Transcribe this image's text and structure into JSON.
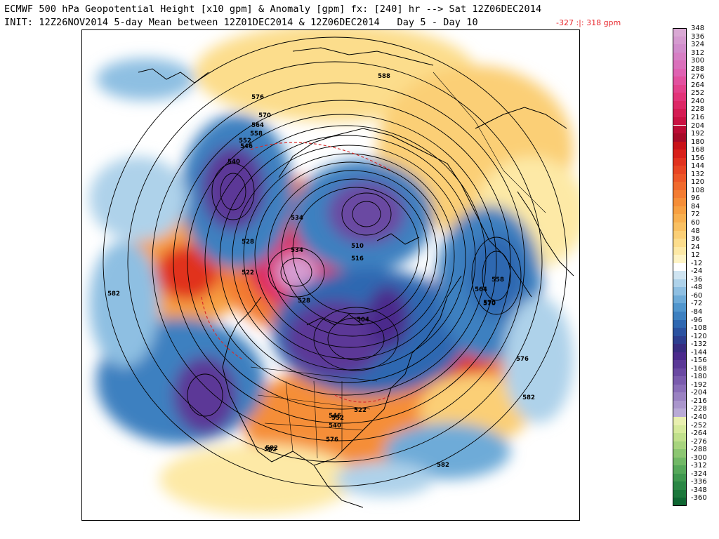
{
  "header": {
    "line1": "ECMWF 500 hPa Geopotential Height [x10 gpm] & Anomaly [gpm] fx: [240] hr --> Sat 12Z06DEC2014",
    "line2": "INIT: 12Z26NOV2014 5-day Mean between 12Z01DEC2014 & 12Z06DEC2014   Day 5 - Day 10",
    "anomaly_range": "-327 :|: 318 gpm"
  },
  "colors": {
    "range_text": "#e8262c",
    "contour": "#000000",
    "dashed_contour": "#d62c2c"
  },
  "legend": {
    "entries": [
      {
        "label": "348",
        "color": "#d9a9d4"
      },
      {
        "label": "336",
        "color": "#d59bd0"
      },
      {
        "label": "324",
        "color": "#d18dcc"
      },
      {
        "label": "312",
        "color": "#d67fc4"
      },
      {
        "label": "300",
        "color": "#da70bb"
      },
      {
        "label": "288",
        "color": "#df62b2"
      },
      {
        "label": "276",
        "color": "#e2519f"
      },
      {
        "label": "264",
        "color": "#e3428c"
      },
      {
        "label": "252",
        "color": "#e23479"
      },
      {
        "label": "240",
        "color": "#dd2866"
      },
      {
        "label": "228",
        "color": "#d41c53"
      },
      {
        "label": "216",
        "color": "#c91242"
      },
      {
        "label": "204",
        "color": "#bb0b34"
      },
      {
        "label": "192",
        "color": "#a60a28"
      },
      {
        "label": "180",
        "color": "#c81218"
      },
      {
        "label": "168",
        "color": "#d8201a"
      },
      {
        "label": "156",
        "color": "#e1321e"
      },
      {
        "label": "144",
        "color": "#e84523"
      },
      {
        "label": "132",
        "color": "#ed5728"
      },
      {
        "label": "120",
        "color": "#f06a2d"
      },
      {
        "label": "108",
        "color": "#f37c32"
      },
      {
        "label": "96",
        "color": "#f58e38"
      },
      {
        "label": "84",
        "color": "#f7a042"
      },
      {
        "label": "72",
        "color": "#f8b050"
      },
      {
        "label": "60",
        "color": "#f9c062"
      },
      {
        "label": "48",
        "color": "#fbcf76"
      },
      {
        "label": "36",
        "color": "#fcdd8c"
      },
      {
        "label": "24",
        "color": "#fde9a6"
      },
      {
        "label": "12",
        "color": "#fef4c6"
      },
      {
        "label": "-12",
        "color": "#ffffff"
      },
      {
        "label": "-24",
        "color": "#cfe4f1"
      },
      {
        "label": "-36",
        "color": "#aed2ea"
      },
      {
        "label": "-48",
        "color": "#8ebfe2"
      },
      {
        "label": "-60",
        "color": "#6eabd8"
      },
      {
        "label": "-72",
        "color": "#5196cd"
      },
      {
        "label": "-84",
        "color": "#3d80c0"
      },
      {
        "label": "-96",
        "color": "#2f68b1"
      },
      {
        "label": "-108",
        "color": "#2b52a0"
      },
      {
        "label": "-120",
        "color": "#2d3e8f"
      },
      {
        "label": "-132",
        "color": "#372c80"
      },
      {
        "label": "-144",
        "color": "#4b2a8c"
      },
      {
        "label": "-156",
        "color": "#5b3997"
      },
      {
        "label": "-168",
        "color": "#6a49a2"
      },
      {
        "label": "-180",
        "color": "#7a5bad"
      },
      {
        "label": "-192",
        "color": "#8a6eb8"
      },
      {
        "label": "-204",
        "color": "#9a82c2"
      },
      {
        "label": "-216",
        "color": "#aa96cc"
      },
      {
        "label": "-228",
        "color": "#b9aad6"
      },
      {
        "label": "-240",
        "color": "#e9f0b0"
      },
      {
        "label": "-252",
        "color": "#d6ea9c"
      },
      {
        "label": "-264",
        "color": "#c0e08c"
      },
      {
        "label": "-276",
        "color": "#a7d47e"
      },
      {
        "label": "-288",
        "color": "#8cc672"
      },
      {
        "label": "-300",
        "color": "#71b866"
      },
      {
        "label": "-312",
        "color": "#56a85a"
      },
      {
        "label": "-324",
        "color": "#3f984f"
      },
      {
        "label": "-336",
        "color": "#2b8745"
      },
      {
        "label": "-348",
        "color": "#1b773b"
      },
      {
        "label": "-360",
        "color": "#0e6632"
      }
    ]
  },
  "map": {
    "contour_labels": [
      "588",
      "582",
      "576",
      "570",
      "564",
      "558",
      "552",
      "546",
      "540",
      "534",
      "528",
      "522",
      "516",
      "510",
      "504",
      "582",
      "582",
      "582",
      "576",
      "570",
      "564",
      "558",
      "528",
      "522",
      "534",
      "546",
      "540",
      "552",
      "576",
      "582",
      "570"
    ]
  }
}
